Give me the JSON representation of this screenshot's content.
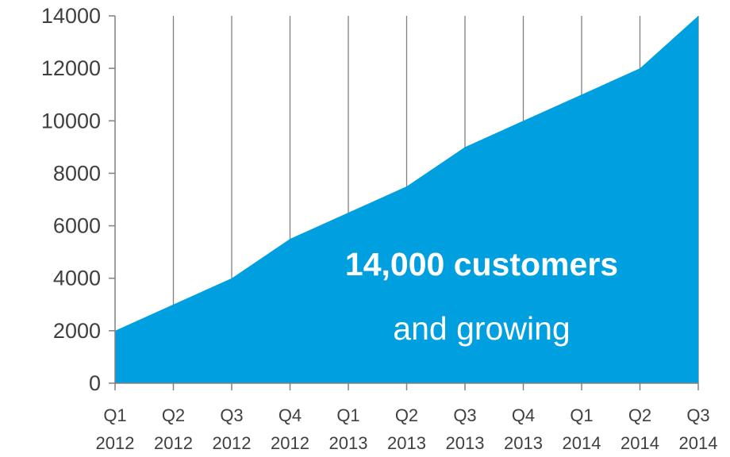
{
  "chart_data": {
    "type": "area",
    "categories": [
      [
        "Q1",
        "2012"
      ],
      [
        "Q2",
        "2012"
      ],
      [
        "Q3",
        "2012"
      ],
      [
        "Q4",
        "2012"
      ],
      [
        "Q1",
        "2013"
      ],
      [
        "Q2",
        "2013"
      ],
      [
        "Q3",
        "2013"
      ],
      [
        "Q4",
        "2013"
      ],
      [
        "Q1",
        "2014"
      ],
      [
        "Q2",
        "2014"
      ],
      [
        "Q3",
        "2014"
      ]
    ],
    "series": [
      {
        "values": [
          2000,
          3000,
          4000,
          5500,
          6500,
          7500,
          9000,
          10000,
          11000,
          12000,
          14000
        ],
        "color": "#009fdf"
      }
    ],
    "ylim": [
      0,
      14000
    ],
    "y_ticks": [
      0,
      2000,
      4000,
      6000,
      8000,
      10000,
      12000,
      14000
    ],
    "grid": {
      "vertical": true,
      "horizontal": false,
      "color": "#808080"
    },
    "legend": "none",
    "annotation": {
      "line1": "14,000 customers",
      "line2": "and growing"
    }
  }
}
